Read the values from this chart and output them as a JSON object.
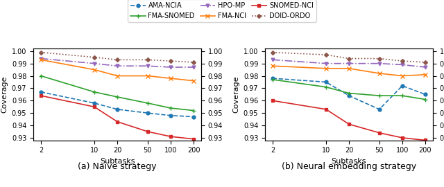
{
  "x_ticks": [
    2,
    10,
    20,
    50,
    100,
    200
  ],
  "x_labels": [
    "2",
    "10",
    "20",
    "50",
    "100",
    "200"
  ],
  "naive": {
    "AMA-NCIA": [
      0.967,
      0.958,
      0.953,
      0.95,
      0.948,
      0.947
    ],
    "FMA-NCI": [
      0.993,
      0.985,
      0.98,
      0.98,
      0.978,
      0.976
    ],
    "FMA-SNOMED": [
      0.98,
      0.967,
      0.963,
      0.958,
      0.954,
      0.952
    ],
    "SNOMED-NCI": [
      0.964,
      0.955,
      0.943,
      0.935,
      0.931,
      0.929
    ],
    "HPO-MP": [
      0.994,
      0.99,
      0.988,
      0.988,
      0.987,
      0.987
    ],
    "DOID-ORDO": [
      0.999,
      0.995,
      0.993,
      0.993,
      0.992,
      0.991
    ]
  },
  "neural": {
    "AMA-NCIA": [
      0.978,
      0.975,
      0.964,
      0.953,
      0.972,
      0.965
    ],
    "FMA-NCI": [
      0.988,
      0.986,
      0.986,
      0.982,
      0.98,
      0.981
    ],
    "FMA-SNOMED": [
      0.977,
      0.971,
      0.966,
      0.964,
      0.964,
      0.961
    ],
    "SNOMED-NCI": [
      0.96,
      0.953,
      0.941,
      0.934,
      0.93,
      0.928
    ],
    "HPO-MP": [
      0.993,
      0.99,
      0.99,
      0.99,
      0.989,
      0.987
    ],
    "DOID-ORDO": [
      0.999,
      0.997,
      0.994,
      0.994,
      0.992,
      0.991
    ]
  },
  "series_styles": {
    "AMA-NCIA": {
      "color": "#1f77b4",
      "marker": "o",
      "linestyle": "--",
      "linewidth": 1.2,
      "markersize": 3.5
    },
    "FMA-NCI": {
      "color": "#ff7f0e",
      "marker": "x",
      "linestyle": "-",
      "linewidth": 1.2,
      "markersize": 5
    },
    "FMA-SNOMED": {
      "color": "#2ca02c",
      "marker": "+",
      "linestyle": "-",
      "linewidth": 1.2,
      "markersize": 5
    },
    "SNOMED-NCI": {
      "color": "#d62728",
      "marker": "s",
      "linestyle": "-",
      "linewidth": 1.2,
      "markersize": 3
    },
    "HPO-MP": {
      "color": "#9467bd",
      "marker": "v",
      "linestyle": "-.",
      "linewidth": 1.2,
      "markersize": 3.5
    },
    "DOID-ORDO": {
      "color": "#8c564b",
      "marker": "D",
      "linestyle": ":",
      "linewidth": 1.2,
      "markersize": 3
    }
  },
  "ylim": [
    0.928,
    1.002
  ],
  "yticks": [
    0.93,
    0.94,
    0.95,
    0.96,
    0.97,
    0.98,
    0.99,
    1.0
  ],
  "xlabel": "Subtasks",
  "ylabel": "Coverage",
  "title_a": "(a) Naive strategy",
  "title_b": "(b) Neural embedding strategy",
  "legend_row1": [
    "AMA-NCIA",
    "FMA-SNOMED",
    "HPO-MP"
  ],
  "legend_row2": [
    "FMA-NCI",
    "SNOMED-NCI",
    "DOID-ORDO"
  ]
}
